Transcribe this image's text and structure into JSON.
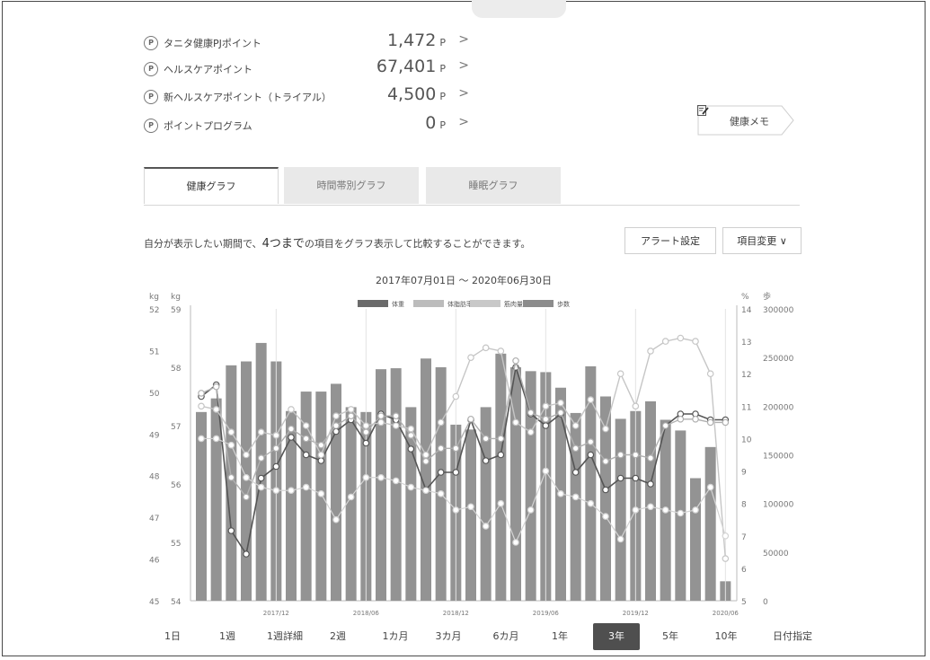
{
  "points": [
    {
      "icon": "P",
      "label": "タニタ健康PJポイント",
      "value": "1,472",
      "unit": "P"
    },
    {
      "icon": "P",
      "label": "ヘルスケアポイント",
      "value": "67,401",
      "unit": "P"
    },
    {
      "icon": "P",
      "label": "新ヘルスケアポイント（トライアル）",
      "value": "4,500",
      "unit": "P"
    },
    {
      "icon": "P",
      "label": "ポイントプログラム",
      "value": "0",
      "unit": "P"
    }
  ],
  "chevron": ">",
  "memo": {
    "label": "健康メモ",
    "icon": "memo-pencil-icon"
  },
  "tabs": [
    "健康グラフ",
    "時間帯別グラフ",
    "睡眠グラフ"
  ],
  "description": {
    "pre": "自分が表示したい期間で、",
    "highlight": "4つまで",
    "post": "の項目をグラフ表示して比較することができます。"
  },
  "buttons": {
    "alert": "アラート設定",
    "item_change": "項目変更",
    "item_change_chevron": "∨"
  },
  "ranges": [
    "1日",
    "1週",
    "1週詳細",
    "2週",
    "1カ月",
    "3カ月",
    "6カ月",
    "1年",
    "3年",
    "5年",
    "10年",
    "日付指定"
  ],
  "active_range": "3年",
  "colors": {
    "bar": "#939393",
    "weight": "#6a6a6a",
    "fat": "#bcbcbc",
    "muscle": "#c8c8c8",
    "steps": "#8c8c8c",
    "accent": "#4f4f4f"
  },
  "chart_data": {
    "type": "bar",
    "title": "2017年07月01日 ～ 2020年06月30日",
    "legend": [
      "体重",
      "体脂肪率",
      "筋肉量",
      "歩数"
    ],
    "axes": {
      "left_outer": {
        "unit": "kg",
        "ticks": [
          "52",
          "51",
          "50",
          "49",
          "48",
          "47",
          "46",
          "45"
        ],
        "range": [
          45,
          52
        ]
      },
      "left_inner": {
        "unit": "kg",
        "ticks": [
          "59",
          "58",
          "57",
          "56",
          "55",
          "54"
        ],
        "range": [
          54,
          59
        ]
      },
      "right_inner": {
        "unit": "%",
        "ticks": [
          "14",
          "13",
          "12",
          "11",
          "10",
          "9",
          "8",
          "7",
          "6",
          "5"
        ],
        "range": [
          5,
          14
        ]
      },
      "right_outer": {
        "unit": "歩",
        "ticks": [
          "300000",
          "250000",
          "200000",
          "150000",
          "100000",
          "50000",
          "0"
        ],
        "range": [
          0,
          300000
        ]
      }
    },
    "x_ticks": [
      "2017/12",
      "2018/06",
      "2018/12",
      "2019/06",
      "2019/12",
      "2020/06"
    ],
    "x_tick_months": [
      5,
      11,
      17,
      23,
      29,
      35
    ],
    "series": [
      {
        "name": "歩数",
        "axis": "right_outer",
        "type": "bar",
        "values": [
          194000,
          208000,
          242000,
          246000,
          265000,
          246000,
          195000,
          215000,
          215000,
          223000,
          199000,
          194000,
          238000,
          239000,
          199000,
          249000,
          240000,
          181000,
          176000,
          199000,
          254000,
          240000,
          236000,
          235000,
          219000,
          193000,
          241000,
          210000,
          187000,
          195000,
          205000,
          186000,
          175000,
          126000,
          158000,
          20000
        ]
      },
      {
        "name": "体重",
        "axis": "left_inner",
        "type": "line",
        "values": [
          57.5,
          57.7,
          55.2,
          54.8,
          56.1,
          56.3,
          56.8,
          56.5,
          56.4,
          56.9,
          57.1,
          56.7,
          57.2,
          57.1,
          56.6,
          55.9,
          56.2,
          56.2,
          57.1,
          56.4,
          56.5,
          58.0,
          57.2,
          57.0,
          57.2,
          56.2,
          56.5,
          55.9,
          56.1,
          56.1,
          56.0,
          57.0,
          57.2,
          57.2,
          57.1,
          57.1
        ]
      },
      {
        "name": "体脂肪率",
        "axis": "right_inner",
        "type": "line",
        "values": [
          11.4,
          11.6,
          8.8,
          8.2,
          9.4,
          9.7,
          10.3,
          10.0,
          9.8,
          10.4,
          10.7,
          10.2,
          10.7,
          10.7,
          10.1,
          9.3,
          9.7,
          9.7,
          10.6,
          10.0,
          10.0,
          12.4,
          10.8,
          10.6,
          10.8,
          9.7,
          9.9,
          9.3,
          9.5,
          9.5,
          9.4,
          10.4,
          10.6,
          10.6,
          10.5,
          10.5
        ]
      },
      {
        "name": "筋肉量",
        "axis": "right_inner",
        "type": "line",
        "values": [
          11.0,
          10.9,
          10.2,
          9.5,
          10.2,
          10.1,
          10.9,
          10.4,
          9.5,
          10.7,
          10.9,
          10.4,
          10.5,
          10.4,
          10.3,
          9.5,
          10.5,
          11.3,
          12.5,
          12.8,
          12.7,
          10.5,
          10.2,
          11.0,
          11.1,
          10.4,
          11.2,
          10.3,
          12.0,
          11.0,
          12.7,
          13.0,
          13.1,
          13.0,
          12.0,
          6.3
        ]
      },
      {
        "name": "体重(補)",
        "axis": "right_inner",
        "type": "line",
        "values": [
          10.0,
          10.0,
          9.8,
          8.8,
          8.5,
          8.4,
          8.4,
          8.5,
          8.3,
          7.5,
          8.2,
          8.8,
          8.8,
          8.7,
          8.5,
          8.4,
          8.3,
          7.8,
          7.9,
          7.3,
          8.0,
          6.8,
          7.8,
          9.0,
          8.3,
          8.2,
          8.0,
          7.6,
          6.9,
          7.8,
          7.9,
          7.8,
          7.7,
          7.8,
          8.5,
          7.0
        ]
      }
    ]
  }
}
